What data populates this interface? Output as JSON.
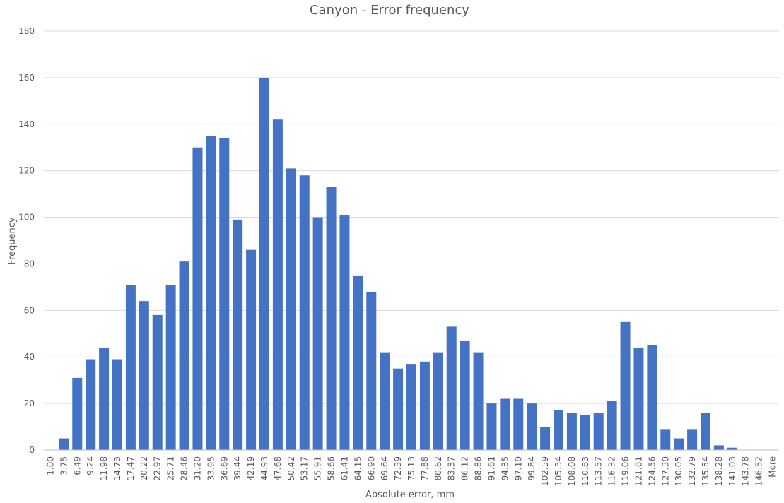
{
  "chart_data": {
    "type": "bar",
    "title": "Canyon - Error frequency",
    "xlabel": "Absolute error, mm",
    "ylabel": "Frequency",
    "ylim": [
      0,
      180
    ],
    "yticks": [
      0,
      20,
      40,
      60,
      80,
      100,
      120,
      140,
      160,
      180
    ],
    "grid": true,
    "legend": "none",
    "bar_color": "#4472c4",
    "categories": [
      "1.00",
      "3.75",
      "6.49",
      "9.24",
      "11.98",
      "14.73",
      "17.47",
      "20.22",
      "22.97",
      "25.71",
      "28.46",
      "31.20",
      "33.95",
      "36.69",
      "39.44",
      "42.19",
      "44.93",
      "47.68",
      "50.42",
      "53.17",
      "55.91",
      "58.66",
      "61.41",
      "64.15",
      "66.90",
      "69.64",
      "72.39",
      "75.13",
      "77.88",
      "80.62",
      "83.37",
      "86.12",
      "88.86",
      "91.61",
      "94.35",
      "97.10",
      "99.84",
      "102.59",
      "105.34",
      "108.08",
      "110.83",
      "113.57",
      "116.32",
      "119.06",
      "121.81",
      "124.56",
      "127.30",
      "130.05",
      "132.79",
      "135.54",
      "138.28",
      "141.03",
      "143.78",
      "146.52",
      "More"
    ],
    "values": [
      0,
      5,
      31,
      39,
      44,
      39,
      71,
      64,
      58,
      71,
      81,
      130,
      135,
      134,
      99,
      86,
      160,
      142,
      121,
      118,
      100,
      113,
      101,
      75,
      68,
      42,
      35,
      37,
      38,
      42,
      53,
      47,
      42,
      20,
      22,
      22,
      20,
      10,
      17,
      16,
      15,
      16,
      21,
      55,
      44,
      45,
      9,
      5,
      9,
      16,
      2,
      1,
      0,
      0,
      0
    ]
  }
}
